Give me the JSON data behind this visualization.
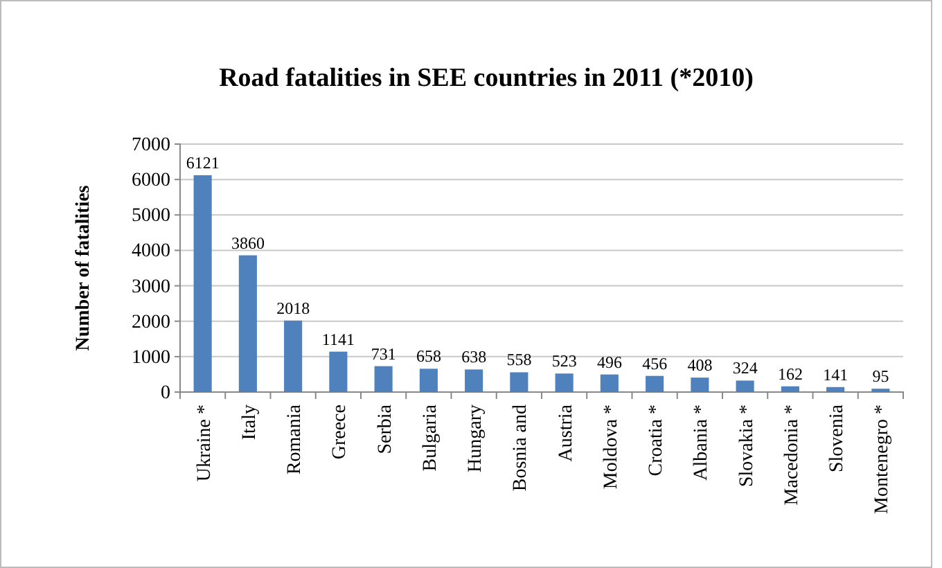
{
  "chart_data": {
    "type": "bar",
    "title": "Road fatalities in SEE countries in 2011 (*2010)",
    "ylabel": "Number of fatalities",
    "categories": [
      "Ukraine *",
      "Italy",
      "Romania",
      "Greece",
      "Serbia",
      "Bulgaria",
      "Hungary",
      "Bosnia and",
      "Austria",
      "Moldova *",
      "Croatia *",
      "Albania *",
      "Slovakia *",
      "Macedonia *",
      "Slovenia",
      "Montenegro *"
    ],
    "values": [
      6121,
      3860,
      2018,
      1141,
      731,
      658,
      638,
      558,
      523,
      496,
      456,
      408,
      324,
      162,
      141,
      95
    ],
    "color": "#4f81bd",
    "ylim": [
      0,
      7000
    ],
    "yticks": [
      0,
      1000,
      2000,
      3000,
      4000,
      5000,
      6000,
      7000
    ],
    "grid": "y",
    "data_labels": true
  }
}
